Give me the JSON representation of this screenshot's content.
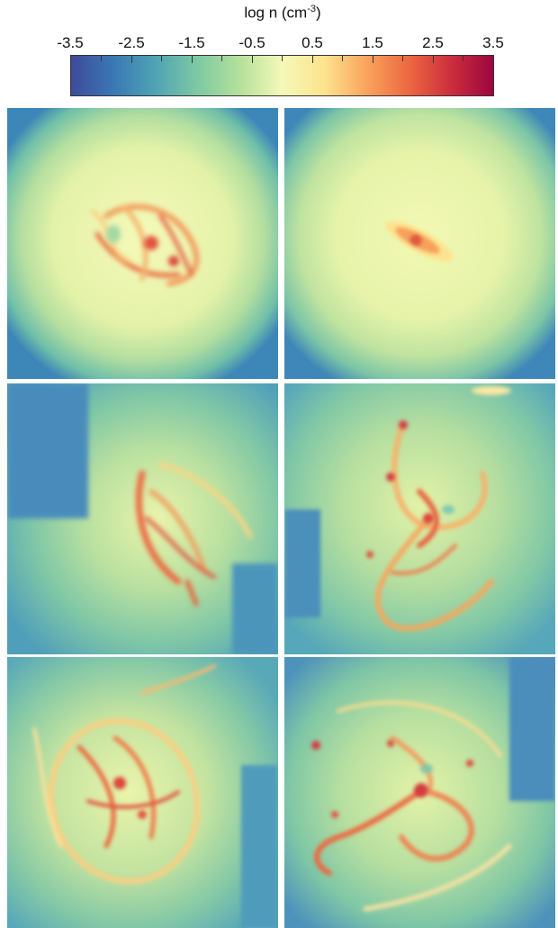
{
  "colorbar": {
    "title_main": "log n (cm",
    "title_sup": "-3",
    "title_close": ")",
    "ticks": [
      "-3.5",
      "-2.5",
      "-1.5",
      "-0.5",
      "0.5",
      "1.5",
      "2.5",
      "3.5"
    ],
    "colormap": [
      "#3f4a9a",
      "#3a78b4",
      "#4fa3b4",
      "#7ec9a3",
      "#b5e09b",
      "#f4f9b8",
      "#fde38e",
      "#f9a45d",
      "#ec6841",
      "#cc2e3c",
      "#9b0640"
    ]
  },
  "panels": [
    {
      "name": "top-left",
      "description": "diffuse halo with clumpy disc"
    },
    {
      "name": "top-right",
      "description": "halo with compact elongated core"
    },
    {
      "name": "middle-left",
      "description": "irregular dense structure"
    },
    {
      "name": "middle-right",
      "description": "spiral with clumps"
    },
    {
      "name": "bottom-left",
      "description": "turbulent clumpy disc"
    },
    {
      "name": "bottom-right",
      "description": "spiral with dense nucleus"
    }
  ]
}
